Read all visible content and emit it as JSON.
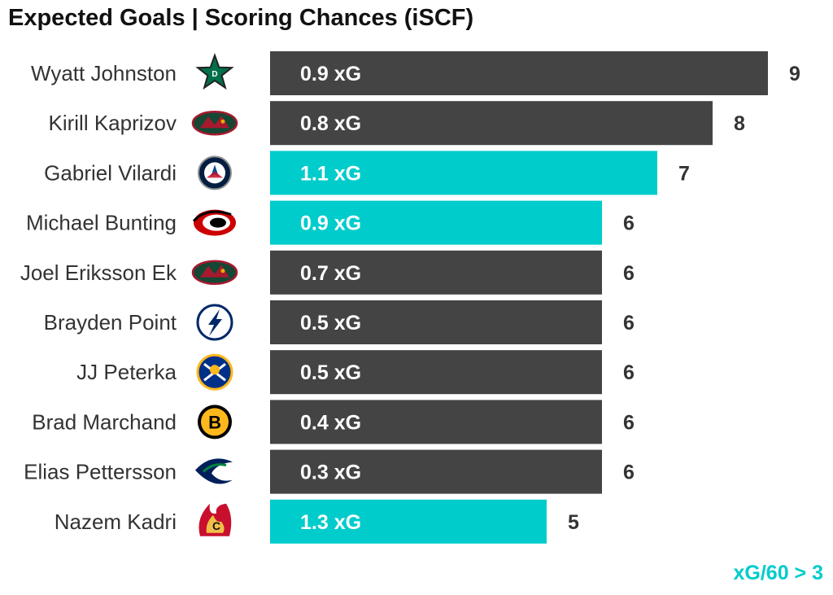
{
  "title": "Expected Goals | Scoring Chances (iSCF)",
  "legend_note": "xG/60 > 3",
  "colors": {
    "default_bar": "#444444",
    "highlight_bar": "#00cccc",
    "count_text": "#333333",
    "bar_text": "#ffffff",
    "note": "#00cccc"
  },
  "chart_data": {
    "type": "bar",
    "orientation": "horizontal",
    "title": "Expected Goals | Scoring Chances (iSCF)",
    "xlabel": "",
    "ylabel": "",
    "xlim": [
      0,
      9
    ],
    "grid": false,
    "categories": [
      "Wyatt Johnston",
      "Kirill Kaprizov",
      "Gabriel Vilardi",
      "Michael Bunting",
      "Joel Eriksson Ek",
      "Brayden Point",
      "JJ Peterka",
      "Brad Marchand",
      "Elias Pettersson",
      "Nazem Kadri"
    ],
    "series": [
      {
        "values": [
          9,
          8,
          7,
          6,
          6,
          6,
          6,
          6,
          6,
          5
        ]
      }
    ],
    "xg_labels": [
      "0.9 xG",
      "0.8 xG",
      "1.1 xG",
      "0.9 xG",
      "0.7 xG",
      "0.5 xG",
      "0.5 xG",
      "0.4 xG",
      "0.3 xG",
      "1.3 xG"
    ],
    "highlighted": [
      false,
      false,
      true,
      true,
      false,
      false,
      false,
      false,
      false,
      true
    ],
    "team_logos": [
      "stars-logo-icon",
      "wild-logo-icon",
      "jets-logo-icon",
      "hurricanes-logo-icon",
      "wild-logo-icon",
      "lightning-logo-icon",
      "sabres-logo-icon",
      "bruins-logo-icon",
      "canucks-logo-icon",
      "flames-logo-icon"
    ]
  }
}
